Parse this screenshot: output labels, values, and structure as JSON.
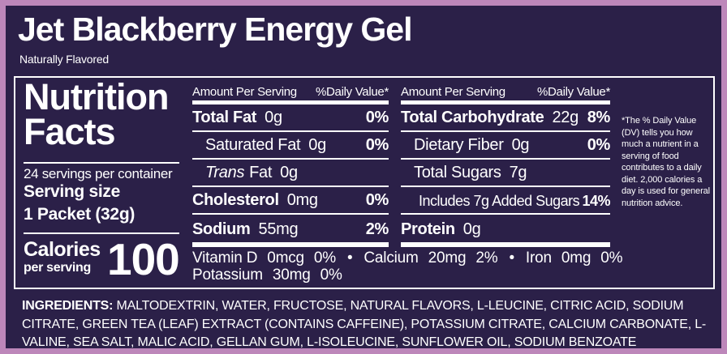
{
  "brand": {
    "title": "Jet Blackberry Energy Gel",
    "subtitle": "Naturally Flavored"
  },
  "panel": {
    "title_line1": "Nutrition",
    "title_line2": "Facts",
    "servings_per_container": "24 servings per container",
    "serving_size_label": "Serving size",
    "serving_size_value": "1 Packet (32g)",
    "calories": {
      "label": "Calories",
      "sublabel": "per serving",
      "value": "100"
    },
    "columns_header": {
      "left": "Amount Per Serving",
      "right": "%Daily Value*"
    },
    "fat_col": {
      "rows": [
        {
          "name": "Total Fat",
          "amount": "0g",
          "dv": "0%"
        },
        {
          "name": "Saturated Fat",
          "amount": "0g",
          "dv": "0%"
        },
        {
          "name_italic": "Trans",
          "name": "Fat",
          "amount": "0g"
        },
        {
          "name": "Cholesterol",
          "amount": "0mg",
          "dv": "0%"
        },
        {
          "name": "Sodium",
          "amount": "55mg",
          "dv": "2%"
        }
      ]
    },
    "carb_col": {
      "rows": [
        {
          "name": "Total Carbohydrate",
          "amount": "22g",
          "dv": "8%"
        },
        {
          "name": "Dietary Fiber",
          "amount": "0g",
          "dv": "0%"
        },
        {
          "name": "Total Sugars",
          "amount": "7g"
        },
        {
          "name": "Includes 7g Added Sugars",
          "dv": "14%"
        },
        {
          "name": "Protein",
          "amount": "0g"
        }
      ]
    },
    "micros": {
      "separator": "•",
      "line1": [
        {
          "name": "Vitamin D",
          "amount": "0mcg",
          "dv": "0%"
        },
        {
          "name": "Calcium",
          "amount": "20mg",
          "dv": "2%"
        },
        {
          "name": "Iron",
          "amount": "0mg",
          "dv": "0%"
        }
      ],
      "line2": [
        {
          "name": "Potassium",
          "amount": "30mg",
          "dv": "0%"
        }
      ]
    },
    "footnote": "*The % Daily Value (DV) tells you how much a nutrient in a serving of food contributes to a daily diet. 2,000 calories a day is used for general nutrition advice."
  },
  "ingredients": {
    "label": "INGREDIENTS:",
    "text": " MALTODEXTRIN, WATER, FRUCTOSE, NATURAL FLAVORS, L-LEUCINE, CITRIC ACID, SODIUM CITRATE, GREEN TEA (LEAF) EXTRACT (CONTAINS CAFFEINE), POTASSIUM CITRATE, CALCIUM CARBONATE, L-VALINE, SEA SALT, MALIC ACID, GELLAN GUM, L-ISOLEUCINE, SUNFLOWER OIL, SODIUM BENZOATE (PRESERVATIVE), POTASSIUM SORBATE (PRESERVATIVE)."
  },
  "colors": {
    "background": "#2b2048",
    "border": "#bd87ba",
    "text": "#ffffff"
  }
}
